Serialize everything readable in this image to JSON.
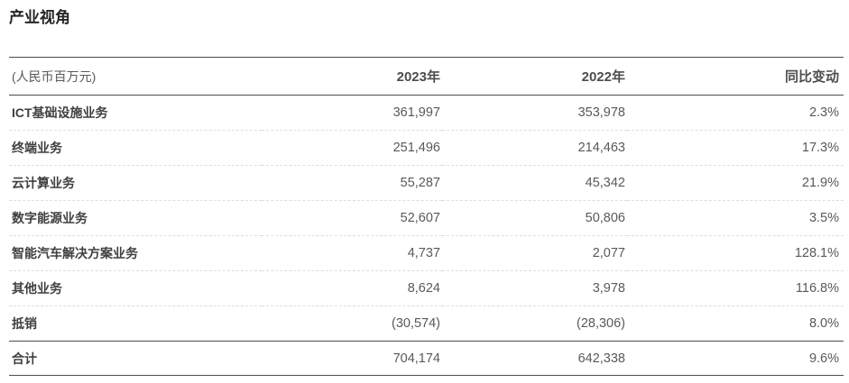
{
  "page": {
    "title": "产业视角"
  },
  "table": {
    "unit_label": "(人民币百万元)",
    "columns": [
      "2023年",
      "2022年",
      "同比变动"
    ],
    "rows": [
      {
        "label": "ICT基础设施业务",
        "y2023": "361,997",
        "y2022": "353,978",
        "change": "2.3%"
      },
      {
        "label": "终端业务",
        "y2023": "251,496",
        "y2022": "214,463",
        "change": "17.3%"
      },
      {
        "label": "云计算业务",
        "y2023": "55,287",
        "y2022": "45,342",
        "change": "21.9%"
      },
      {
        "label": "数字能源业务",
        "y2023": "52,607",
        "y2022": "50,806",
        "change": "3.5%"
      },
      {
        "label": "智能汽车解决方案业务",
        "y2023": "4,737",
        "y2022": "2,077",
        "change": "128.1%"
      },
      {
        "label": "其他业务",
        "y2023": "8,624",
        "y2022": "3,978",
        "change": "116.8%"
      },
      {
        "label": "抵销",
        "y2023": "(30,574)",
        "y2022": "(28,306)",
        "change": "8.0%"
      }
    ],
    "total_row": {
      "label": "合计",
      "y2023": "704,174",
      "y2022": "642,338",
      "change": "9.6%"
    },
    "colors": {
      "title": "#262626",
      "header_text": "#4d4d4d",
      "row_label_text": "#404040",
      "number_text": "#595959",
      "solid_border": "#4d4d4d",
      "dashed_border": "#dedede",
      "background": "#ffffff"
    }
  }
}
